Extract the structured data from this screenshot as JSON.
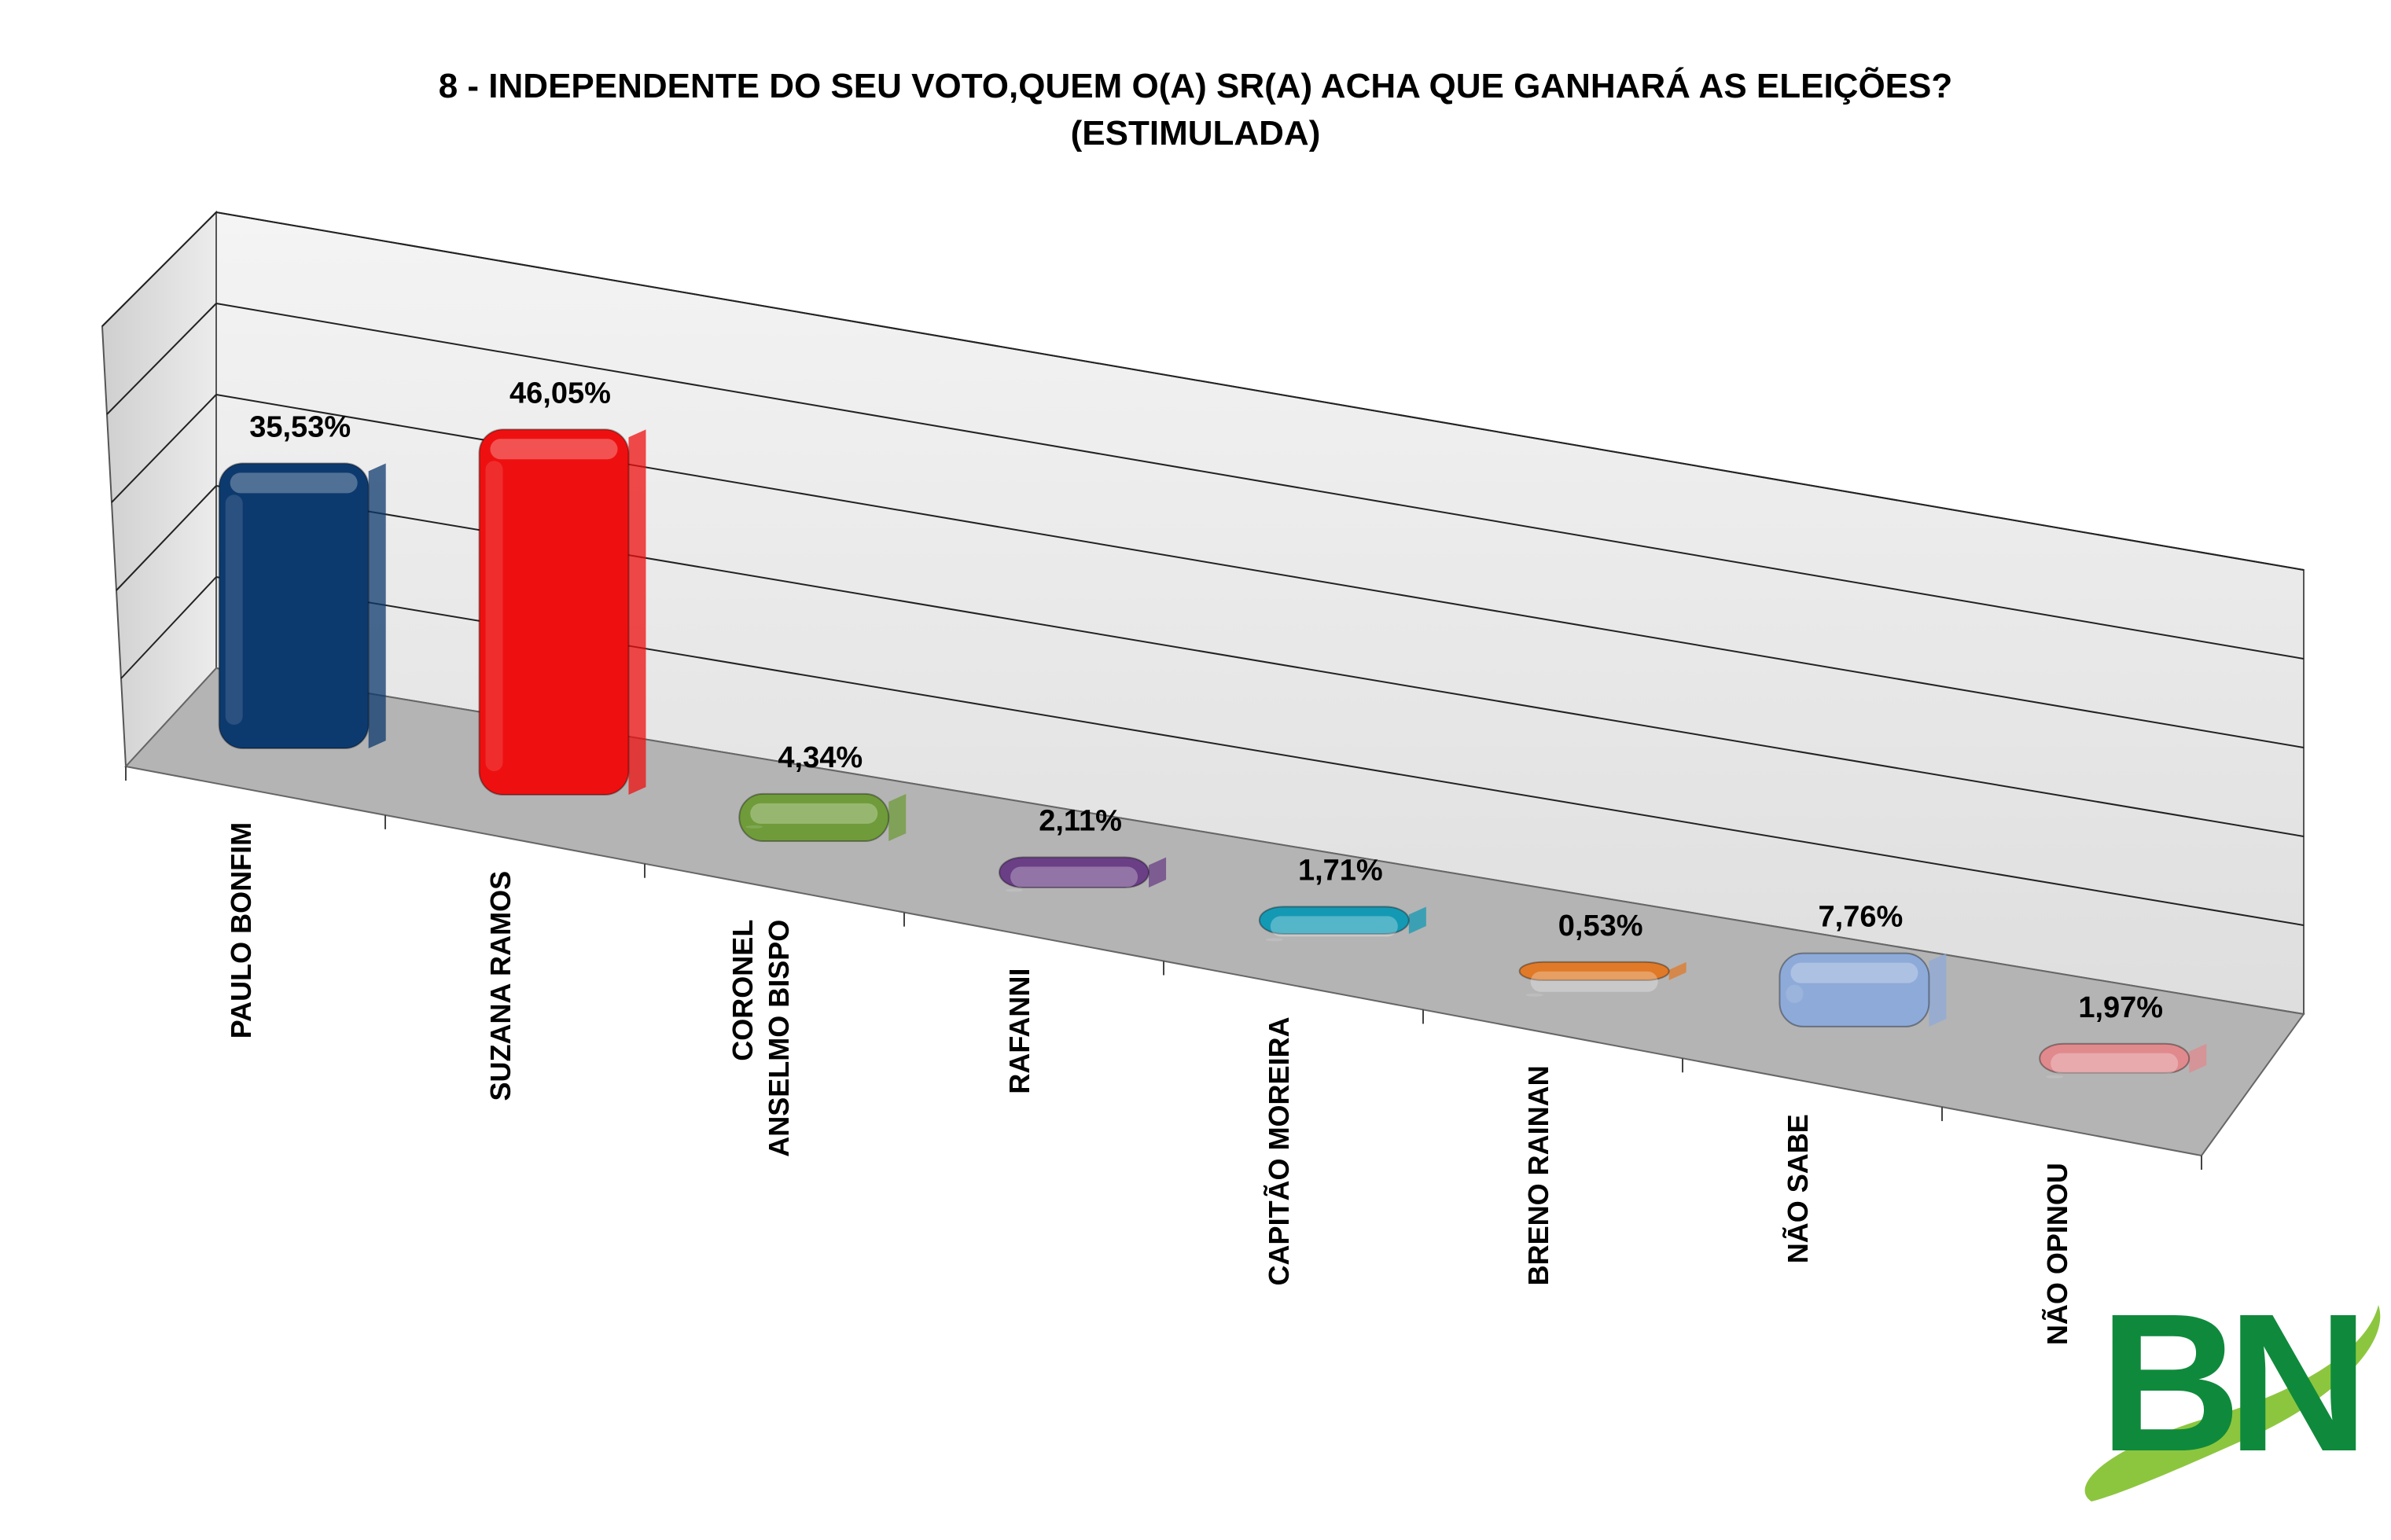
{
  "chart_data": {
    "type": "bar",
    "title_line1": "8 - INDEPENDENTE DO SEU VOTO,QUEM O(A) SR(A) ACHA QUE GANHARÁ AS ELEIÇÕES?",
    "title_line2": "(ESTIMULADA)",
    "categories": [
      [
        "PAULO BONFIM"
      ],
      [
        "SUZANA RAMOS"
      ],
      [
        "CORONEL",
        "ANSELMO BISPO"
      ],
      [
        "RAFANNI"
      ],
      [
        "CAPITÃO MOREIRA"
      ],
      [
        "BRENO RAINAN"
      ],
      [
        "NÃO SABE"
      ],
      [
        "NÃO OPINOU"
      ]
    ],
    "values": [
      35.53,
      46.05,
      4.34,
      2.11,
      1.71,
      0.53,
      7.76,
      1.97
    ],
    "value_labels": [
      "35,53%",
      "46,05%",
      "4,34%",
      "2,11%",
      "1,71%",
      "0,53%",
      "7,76%",
      "1,97%"
    ],
    "colors": [
      "#0d3a6e",
      "#ee1010",
      "#6f9b3a",
      "#6a3f86",
      "#1499b4",
      "#e07a28",
      "#8eaad8",
      "#e08a8e"
    ],
    "ylim": [
      0,
      50
    ],
    "grid": true,
    "projection": "3d-perspective"
  },
  "logo": {
    "text": "BN",
    "color": "#0f8a3c",
    "swoosh_color": "#8cc63f"
  }
}
